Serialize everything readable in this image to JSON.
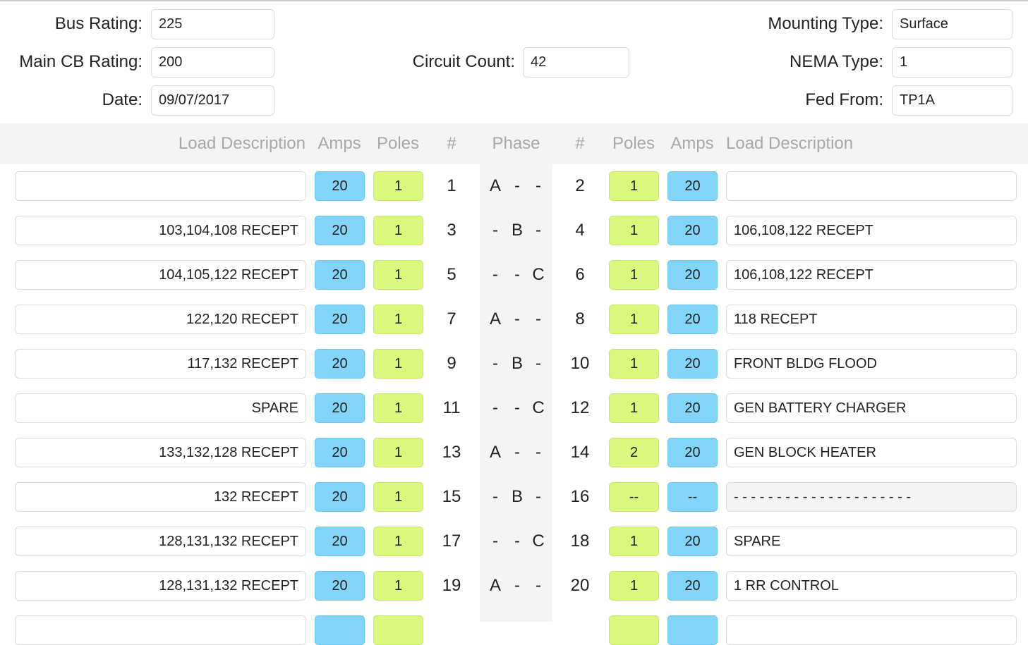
{
  "header": {
    "fields": [
      {
        "label": "Bus Rating:",
        "value": "225"
      },
      {
        "label": "Main CB Rating:",
        "value": "200"
      },
      {
        "label": "Date:",
        "value": "09/07/2017"
      },
      {
        "label": "Circuit Count:",
        "value": "42"
      },
      {
        "label": "Mounting Type:",
        "value": "Surface"
      },
      {
        "label": "NEMA Type:",
        "value": "1"
      },
      {
        "label": "Fed From:",
        "value": "TP1A"
      }
    ]
  },
  "table": {
    "columns": [
      "Load Description",
      "Amps",
      "Poles",
      "#",
      "Phase",
      "#",
      "Poles",
      "Amps",
      "Load Description"
    ],
    "rows": [
      {
        "left_desc": "",
        "left_amps": "20",
        "left_poles": "1",
        "left_num": "1",
        "phase": [
          "A",
          "-",
          "-"
        ],
        "right_num": "2",
        "right_poles": "1",
        "right_amps": "20",
        "right_desc": ""
      },
      {
        "left_desc": "103,104,108 RECEPT",
        "left_amps": "20",
        "left_poles": "1",
        "left_num": "3",
        "phase": [
          "-",
          "B",
          "-"
        ],
        "right_num": "4",
        "right_poles": "1",
        "right_amps": "20",
        "right_desc": "106,108,122 RECEPT"
      },
      {
        "left_desc": "104,105,122 RECEPT",
        "left_amps": "20",
        "left_poles": "1",
        "left_num": "5",
        "phase": [
          "-",
          "-",
          "C"
        ],
        "right_num": "6",
        "right_poles": "1",
        "right_amps": "20",
        "right_desc": "106,108,122 RECEPT"
      },
      {
        "left_desc": "122,120 RECEPT",
        "left_amps": "20",
        "left_poles": "1",
        "left_num": "7",
        "phase": [
          "A",
          "-",
          "-"
        ],
        "right_num": "8",
        "right_poles": "1",
        "right_amps": "20",
        "right_desc": "118 RECEPT"
      },
      {
        "left_desc": "117,132 RECEPT",
        "left_amps": "20",
        "left_poles": "1",
        "left_num": "9",
        "phase": [
          "-",
          "B",
          "-"
        ],
        "right_num": "10",
        "right_poles": "1",
        "right_amps": "20",
        "right_desc": "FRONT BLDG FLOOD"
      },
      {
        "left_desc": "SPARE",
        "left_amps": "20",
        "left_poles": "1",
        "left_num": "11",
        "phase": [
          "-",
          "-",
          "C"
        ],
        "right_num": "12",
        "right_poles": "1",
        "right_amps": "20",
        "right_desc": "GEN BATTERY CHARGER"
      },
      {
        "left_desc": "133,132,128 RECEPT",
        "left_amps": "20",
        "left_poles": "1",
        "left_num": "13",
        "phase": [
          "A",
          "-",
          "-"
        ],
        "right_num": "14",
        "right_poles": "2",
        "right_amps": "20",
        "right_desc": "GEN BLOCK HEATER"
      },
      {
        "left_desc": "132 RECEPT",
        "left_amps": "20",
        "left_poles": "1",
        "left_num": "15",
        "phase": [
          "-",
          "B",
          "-"
        ],
        "right_num": "16",
        "right_poles": "--",
        "right_amps": "--",
        "right_desc": "- - - - - - - - - - - - - - - - - - - - -"
      },
      {
        "left_desc": "128,131,132 RECEPT",
        "left_amps": "20",
        "left_poles": "1",
        "left_num": "17",
        "phase": [
          "-",
          "-",
          "C"
        ],
        "right_num": "18",
        "right_poles": "1",
        "right_amps": "20",
        "right_desc": "SPARE"
      },
      {
        "left_desc": "128,131,132 RECEPT",
        "left_amps": "20",
        "left_poles": "1",
        "left_num": "19",
        "phase": [
          "A",
          "-",
          "-"
        ],
        "right_num": "20",
        "right_poles": "1",
        "right_amps": "20",
        "right_desc": "1 RR CONTROL"
      }
    ]
  }
}
